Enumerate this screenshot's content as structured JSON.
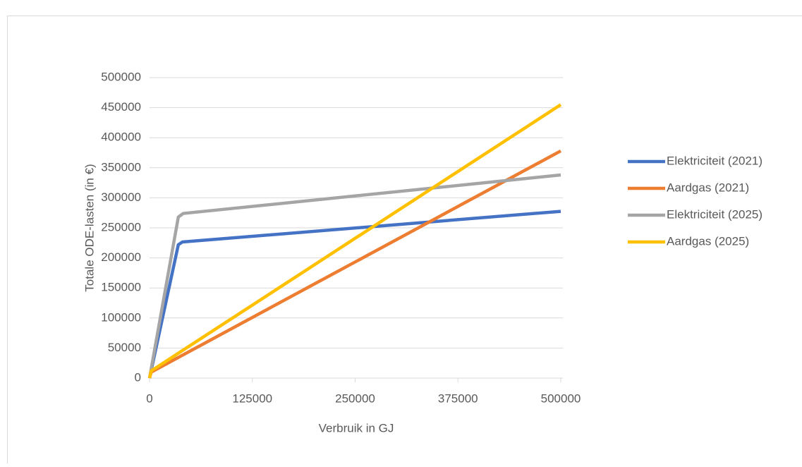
{
  "chart_data": {
    "type": "line",
    "x_label": "Verbruik in GJ",
    "y_label": "Totale ODE-lasten (in €)",
    "xlim": [
      0,
      500000
    ],
    "xticks": [
      0,
      125000,
      250000,
      375000,
      500000
    ],
    "ylim": [
      0,
      500000
    ],
    "yticks": [
      0,
      50000,
      100000,
      150000,
      200000,
      250000,
      300000,
      350000,
      400000,
      450000,
      500000
    ],
    "grid": true,
    "legend": "right",
    "series": [
      {
        "name": "Elektriciteit (2021)",
        "color": "#4472c4",
        "x": [
          0,
          35000,
          40000,
          500000
        ],
        "values": [
          0,
          222000,
          226500,
          277500
        ]
      },
      {
        "name": "Aardgas (2021)",
        "color": "#ed7d31",
        "x": [
          0,
          2000,
          500000
        ],
        "values": [
          0,
          10000,
          378000
        ]
      },
      {
        "name": "Elektriciteit (2025)",
        "color": "#a5a5a5",
        "x": [
          0,
          35000,
          41000,
          500000
        ],
        "values": [
          0,
          268000,
          274000,
          338000
        ]
      },
      {
        "name": "Aardgas (2025)",
        "color": "#ffc000",
        "x": [
          0,
          2000,
          500000
        ],
        "values": [
          0,
          12000,
          455000
        ]
      }
    ]
  }
}
